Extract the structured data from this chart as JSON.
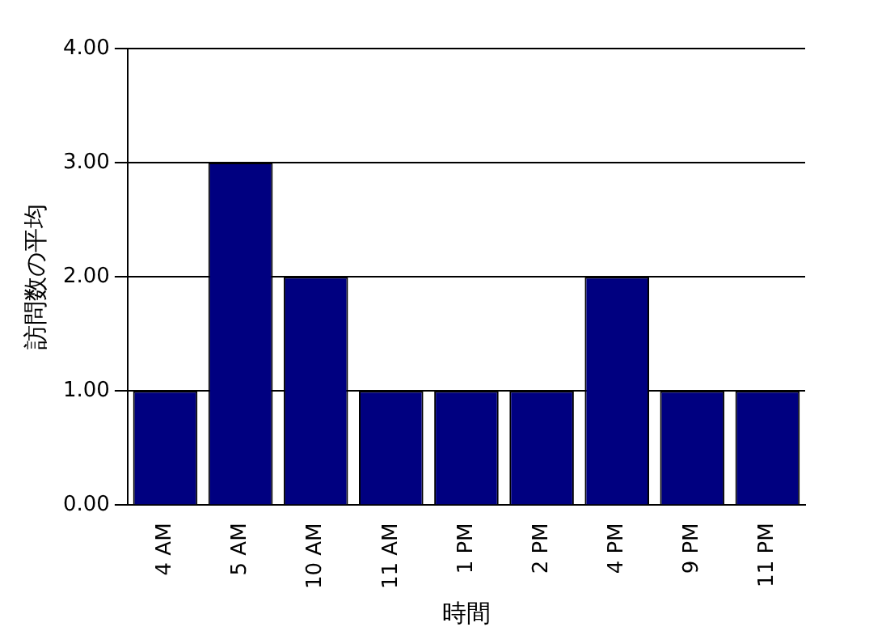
{
  "chart_data": {
    "type": "bar",
    "xlabel": "時間",
    "ylabel": "訪問数の平均",
    "categories": [
      "4 AM",
      "5 AM",
      "10 AM",
      "11 AM",
      "1 PM",
      "2 PM",
      "4 PM",
      "9 PM",
      "11 PM"
    ],
    "values": [
      1,
      3,
      2,
      1,
      1,
      1,
      2,
      1,
      1
    ],
    "color": "#000080",
    "ylim": [
      0,
      4
    ],
    "yticks": [
      {
        "value": 0,
        "label": "0.00"
      },
      {
        "value": 1,
        "label": "1.00"
      },
      {
        "value": 2,
        "label": "2.00"
      },
      {
        "value": 3,
        "label": "3.00"
      },
      {
        "value": 4,
        "label": "4.00"
      }
    ],
    "grid": "y",
    "legend": false
  }
}
